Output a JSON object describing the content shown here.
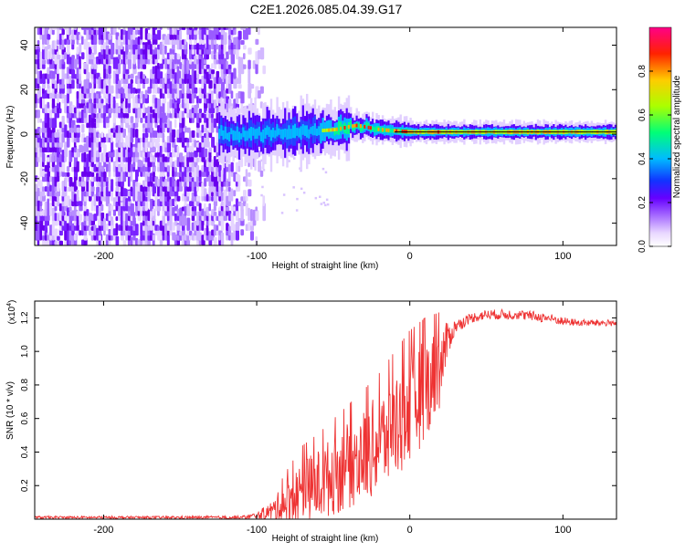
{
  "title": "C2E1.2026.085.04.39.G17",
  "chart_data": [
    {
      "type": "heatmap",
      "name": "spectrogram",
      "xlabel": "Height of straight line (km)",
      "ylabel": "Frequency (Hz)",
      "xlim": [
        -245,
        135
      ],
      "ylim": [
        -50,
        48
      ],
      "xticks": [
        -200,
        -100,
        0,
        100
      ],
      "xtick_labels": [
        "-200",
        "-100",
        "0",
        "100"
      ],
      "yticks": [
        -40,
        -20,
        0,
        20,
        40
      ],
      "ytick_labels": [
        "-40",
        "-20",
        "0",
        "20",
        "40"
      ],
      "colorbar": {
        "label": "Normalized spectral amplitude",
        "range": [
          0.0,
          1.0
        ],
        "ticks": [
          0.0,
          0.2,
          0.4,
          0.6,
          0.8
        ],
        "tick_labels": [
          "0.0",
          "0.2",
          "0.4",
          "0.6",
          "0.8"
        ],
        "colors": [
          "#ffffff",
          "#cc99ff",
          "#8a2be2",
          "#3333ff",
          "#00ccff",
          "#00ff66",
          "#ccff00",
          "#ffaa00",
          "#ff0000",
          "#ff0088"
        ]
      },
      "features": {
        "noise_region_x": [
          -245,
          -100
        ],
        "signal_start_x": -125,
        "peak_frequency_track": [
          [
            -120,
            0
          ],
          [
            -90,
            0.5
          ],
          [
            -70,
            1
          ],
          [
            -50,
            2
          ],
          [
            -35,
            4
          ],
          [
            -20,
            2
          ],
          [
            0,
            1
          ],
          [
            20,
            1
          ],
          [
            60,
            1
          ],
          [
            100,
            1
          ],
          [
            135,
            1
          ]
        ],
        "reference_line_frequency": 1
      }
    },
    {
      "type": "line",
      "name": "snr",
      "xlabel": "Height of straight line (km)",
      "ylabel": "SNR (10 * v/v)",
      "scale_label": "(x10",
      "scale_exp": "4",
      "scale_close": ")",
      "xlim": [
        -245,
        135
      ],
      "ylim": [
        0,
        1.3
      ],
      "xticks": [
        -200,
        -100,
        0,
        100
      ],
      "xtick_labels": [
        "-200",
        "-100",
        "0",
        "100"
      ],
      "yticks": [
        0.2,
        0.4,
        0.6,
        0.8,
        1.0,
        1.2
      ],
      "ytick_labels": [
        "0.2",
        "0.4",
        "0.6",
        "0.8",
        "1.0",
        "1.2"
      ],
      "color": "#ee3333",
      "envelope": {
        "x": [
          -245,
          -150,
          -110,
          -100,
          -90,
          -80,
          -70,
          -60,
          -50,
          -40,
          -30,
          -20,
          -10,
          0,
          10,
          20,
          25,
          30,
          40,
          50,
          60,
          70,
          80,
          90,
          100,
          110,
          120,
          135
        ],
        "mean": [
          0.01,
          0.01,
          0.01,
          0.02,
          0.05,
          0.1,
          0.16,
          0.2,
          0.26,
          0.32,
          0.38,
          0.45,
          0.55,
          0.65,
          0.78,
          0.9,
          1.08,
          1.15,
          1.2,
          1.22,
          1.22,
          1.22,
          1.21,
          1.2,
          1.18,
          1.17,
          1.17,
          1.17
        ],
        "spread": [
          0.008,
          0.008,
          0.01,
          0.02,
          0.06,
          0.14,
          0.2,
          0.22,
          0.24,
          0.26,
          0.28,
          0.3,
          0.32,
          0.34,
          0.3,
          0.24,
          0.1,
          0.04,
          0.03,
          0.03,
          0.03,
          0.03,
          0.03,
          0.03,
          0.025,
          0.02,
          0.02,
          0.02
        ]
      }
    }
  ]
}
